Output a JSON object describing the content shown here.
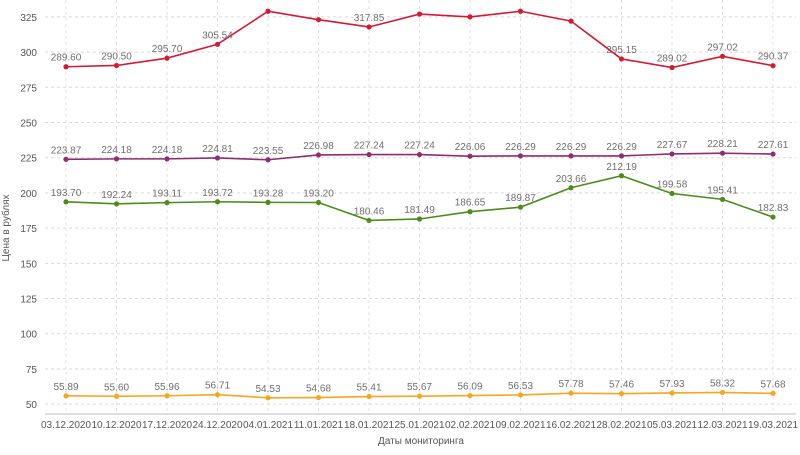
{
  "chart_data": {
    "type": "line",
    "xlabel": "Даты мониторинга",
    "ylabel": "Цена в рублях",
    "ylim": [
      43,
      337
    ],
    "yticks": [
      50,
      75,
      100,
      125,
      150,
      175,
      200,
      225,
      250,
      275,
      300,
      325
    ],
    "grid": true,
    "legend": "none",
    "categories": [
      "03.12.2020",
      "10.12.2020",
      "17.12.2020",
      "24.12.2020",
      "04.01.2021",
      "11.01.2021",
      "18.01.2021",
      "25.01.2021",
      "02.02.2021",
      "09.02.2021",
      "16.02.2021",
      "28.02.2021",
      "05.03.2021",
      "12.03.2021",
      "19.03.2021"
    ],
    "series": [
      {
        "color": "#d01c32",
        "values": [
          289.6,
          290.5,
          295.7,
          305.54,
          329,
          323,
          317.85,
          327,
          325,
          329,
          322,
          295.15,
          289.02,
          297.02,
          290.37
        ],
        "labels": [
          "289.60",
          "290.50",
          "295.70",
          "305.54",
          "",
          "",
          "317.85",
          "",
          "",
          "",
          "",
          "295.15",
          "289.02",
          "297.02",
          "290.37"
        ]
      },
      {
        "color": "#8c2f6e",
        "values": [
          223.87,
          224.18,
          224.18,
          224.81,
          223.55,
          226.98,
          227.24,
          227.24,
          226.06,
          226.29,
          226.29,
          226.29,
          227.67,
          228.21,
          227.61
        ],
        "labels": [
          "223.87",
          "224.18",
          "224.18",
          "224.81",
          "223.55",
          "226.98",
          "227.24",
          "227.24",
          "226.06",
          "226.29",
          "226.29",
          "226.29",
          "227.67",
          "228.21",
          "227.61"
        ]
      },
      {
        "color": "#4e8a1e",
        "values": [
          193.7,
          192.24,
          193.11,
          193.72,
          193.28,
          193.2,
          180.46,
          181.49,
          186.65,
          189.87,
          203.66,
          212.19,
          199.58,
          195.41,
          182.83
        ],
        "labels": [
          "193.70",
          "192.24",
          "193.11",
          "193.72",
          "193.28",
          "193.20",
          "180.46",
          "181.49",
          "186.65",
          "189.87",
          "203.66",
          "212.19",
          "199.58",
          "195.41",
          "182.83"
        ]
      },
      {
        "color": "#f5a623",
        "values": [
          55.89,
          55.6,
          55.96,
          56.71,
          54.53,
          54.68,
          55.41,
          55.67,
          56.09,
          56.53,
          57.78,
          57.46,
          57.93,
          58.32,
          57.68
        ],
        "labels": [
          "55.89",
          "55.60",
          "55.96",
          "56.71",
          "54.53",
          "54.68",
          "55.41",
          "55.67",
          "56.09",
          "56.53",
          "57.78",
          "57.46",
          "57.93",
          "58.32",
          "57.68"
        ]
      }
    ]
  }
}
